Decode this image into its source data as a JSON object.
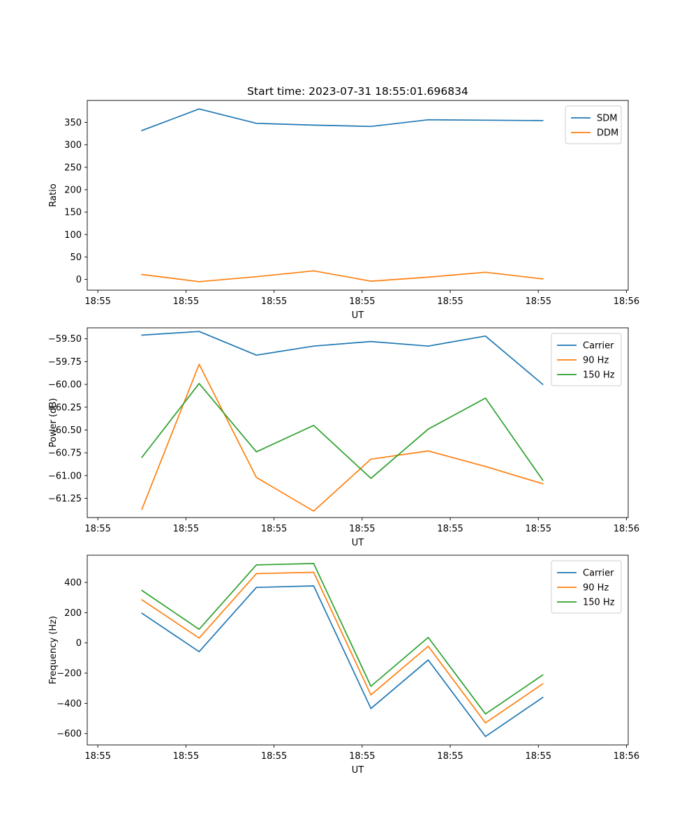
{
  "chart_data": [
    {
      "type": "line",
      "title": "Start time: 2023-07-31 18:55:01.696834",
      "xlabel": "UT",
      "ylabel": "Ratio",
      "x_ticks": [
        "18:55",
        "18:55",
        "18:55",
        "18:55",
        "18:55",
        "18:55",
        "18:56"
      ],
      "x_tick_values": [
        0,
        1,
        2,
        3,
        4,
        5,
        6
      ],
      "xlim": [
        -0.12,
        6.02
      ],
      "y_ticks": [
        0,
        50,
        100,
        150,
        200,
        250,
        300,
        350
      ],
      "ylim": [
        -24,
        399
      ],
      "x": [
        0.5,
        1.15,
        1.8,
        2.45,
        3.1,
        3.75,
        4.4,
        5.05
      ],
      "legend": "top-right",
      "series": [
        {
          "name": "SDM",
          "color": "#1f77b4",
          "values": [
            332,
            380,
            348,
            344,
            341,
            356,
            355,
            354
          ]
        },
        {
          "name": "DDM",
          "color": "#ff7f0e",
          "values": [
            11,
            -5,
            6,
            19,
            -4,
            5,
            16,
            1
          ]
        }
      ]
    },
    {
      "type": "line",
      "title": "",
      "xlabel": "UT",
      "ylabel": "Power (dB)",
      "x_ticks": [
        "18:55",
        "18:55",
        "18:55",
        "18:55",
        "18:55",
        "18:55",
        "18:56"
      ],
      "x_tick_values": [
        0,
        1,
        2,
        3,
        4,
        5,
        6
      ],
      "xlim": [
        -0.12,
        6.02
      ],
      "y_ticks": [
        -61.25,
        -61.0,
        -60.75,
        -60.5,
        -60.25,
        -60.0,
        -59.75,
        -59.5
      ],
      "y_tick_labels": [
        "−61.25",
        "−61.00",
        "−60.75",
        "−60.50",
        "−60.25",
        "−60.00",
        "−59.75",
        "−59.50"
      ],
      "ylim": [
        -61.46,
        -59.38
      ],
      "x": [
        0.5,
        1.15,
        1.8,
        2.45,
        3.1,
        3.75,
        4.4,
        5.05
      ],
      "legend": "top-right",
      "series": [
        {
          "name": "Carrier",
          "color": "#1f77b4",
          "values": [
            -59.46,
            -59.42,
            -59.68,
            -59.58,
            -59.53,
            -59.58,
            -59.47,
            -60.0
          ]
        },
        {
          "name": "90 Hz",
          "color": "#ff7f0e",
          "values": [
            -61.37,
            -59.78,
            -61.02,
            -61.39,
            -60.82,
            -60.73,
            -60.9,
            -61.09
          ]
        },
        {
          "name": "150 Hz",
          "color": "#2ca02c",
          "values": [
            -60.8,
            -59.99,
            -60.74,
            -60.45,
            -61.03,
            -60.49,
            -60.15,
            -61.05
          ]
        }
      ]
    },
    {
      "type": "line",
      "title": "",
      "xlabel": "UT",
      "ylabel": "Frequency (Hz)",
      "x_ticks": [
        "18:55",
        "18:55",
        "18:55",
        "18:55",
        "18:55",
        "18:55",
        "18:56"
      ],
      "x_tick_values": [
        0,
        1,
        2,
        3,
        4,
        5,
        6
      ],
      "xlim": [
        -0.12,
        6.02
      ],
      "y_ticks": [
        -600,
        -400,
        -200,
        0,
        200,
        400
      ],
      "y_tick_labels": [
        "−600",
        "−400",
        "−200",
        "0",
        "200",
        "400"
      ],
      "ylim": [
        -675,
        580
      ],
      "x": [
        0.5,
        1.15,
        1.8,
        2.45,
        3.1,
        3.75,
        4.4,
        5.05
      ],
      "legend": "top-right",
      "series": [
        {
          "name": "Carrier",
          "color": "#1f77b4",
          "values": [
            196,
            -58,
            367,
            377,
            -434,
            -113,
            -619,
            -361
          ]
        },
        {
          "name": "90 Hz",
          "color": "#ff7f0e",
          "values": [
            285,
            32,
            458,
            467,
            -344,
            -22,
            -529,
            -271
          ]
        },
        {
          "name": "150 Hz",
          "color": "#2ca02c",
          "values": [
            347,
            90,
            516,
            525,
            -287,
            36,
            -470,
            -212
          ]
        }
      ]
    }
  ]
}
